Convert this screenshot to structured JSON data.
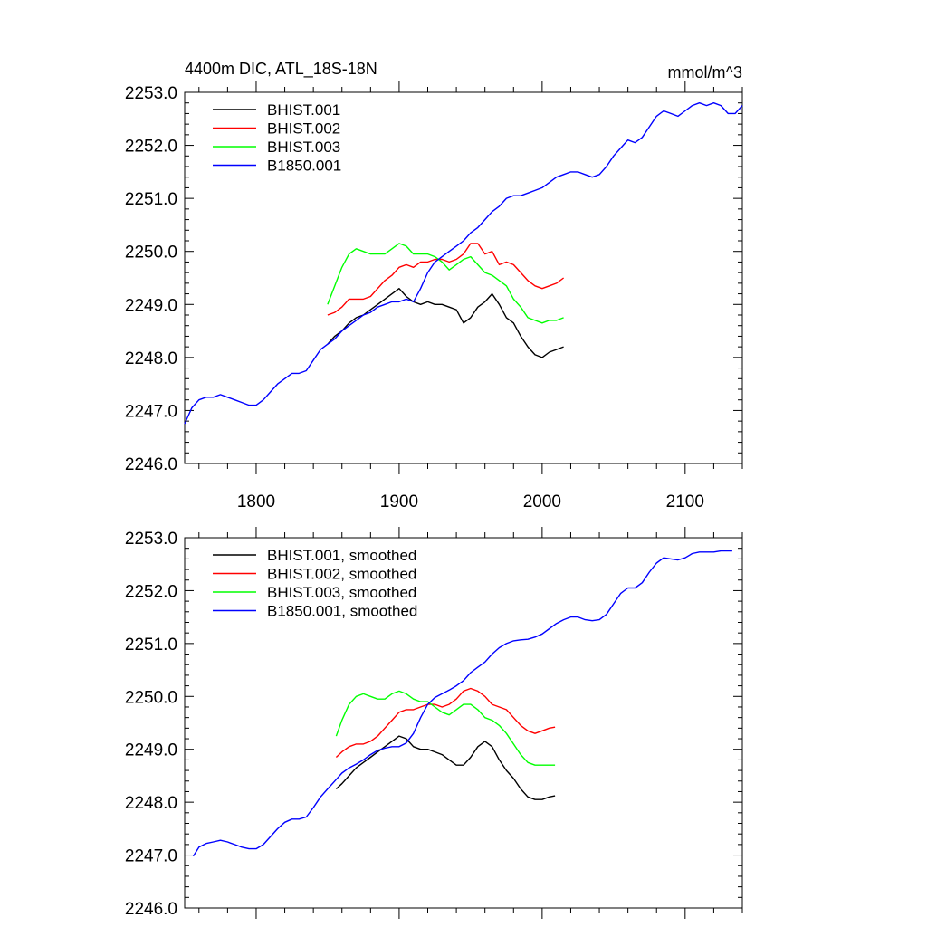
{
  "chart_data": [
    {
      "type": "line",
      "title": "4400m DIC, ATL_18S-18N",
      "units": "mmol/m^3",
      "xlim": [
        1750,
        2140
      ],
      "ylim": [
        2246.0,
        2253.0
      ],
      "x_ticks": [
        1800,
        1900,
        2000,
        2100
      ],
      "x_tick_labels": [
        "1800",
        "1900",
        "2000",
        "2100"
      ],
      "y_ticks": [
        2246.0,
        2247.0,
        2248.0,
        2249.0,
        2250.0,
        2251.0,
        2252.0,
        2253.0
      ],
      "y_tick_labels": [
        "2246.0",
        "2247.0",
        "2248.0",
        "2249.0",
        "2250.0",
        "2251.0",
        "2252.0",
        "2253.0"
      ],
      "legend_position": "top-left",
      "series": [
        {
          "name": "BHIST.001",
          "color": "#000000",
          "x": [
            1850,
            1855,
            1860,
            1865,
            1870,
            1875,
            1880,
            1885,
            1890,
            1895,
            1900,
            1905,
            1910,
            1915,
            1920,
            1925,
            1930,
            1935,
            1940,
            1945,
            1950,
            1955,
            1960,
            1965,
            1970,
            1975,
            1980,
            1985,
            1990,
            1995,
            2000,
            2005,
            2010,
            2015
          ],
          "y": [
            2248.25,
            2248.4,
            2248.5,
            2248.65,
            2248.75,
            2248.8,
            2248.9,
            2249.0,
            2249.1,
            2249.2,
            2249.3,
            2249.15,
            2249.05,
            2249.0,
            2249.05,
            2249.0,
            2249.0,
            2248.95,
            2248.9,
            2248.65,
            2248.75,
            2248.95,
            2249.05,
            2249.2,
            2249.0,
            2248.75,
            2248.65,
            2248.4,
            2248.2,
            2248.05,
            2248.0,
            2248.1,
            2248.15,
            2248.2
          ]
        },
        {
          "name": "BHIST.002",
          "color": "#ff0000",
          "x": [
            1850,
            1855,
            1860,
            1865,
            1870,
            1875,
            1880,
            1885,
            1890,
            1895,
            1900,
            1905,
            1910,
            1915,
            1920,
            1925,
            1930,
            1935,
            1940,
            1945,
            1950,
            1955,
            1960,
            1965,
            1970,
            1975,
            1980,
            1985,
            1990,
            1995,
            2000,
            2005,
            2010,
            2015
          ],
          "y": [
            2248.8,
            2248.85,
            2248.95,
            2249.1,
            2249.1,
            2249.1,
            2249.15,
            2249.3,
            2249.45,
            2249.55,
            2249.7,
            2249.75,
            2249.7,
            2249.8,
            2249.8,
            2249.85,
            2249.85,
            2249.8,
            2249.85,
            2249.95,
            2250.15,
            2250.15,
            2249.95,
            2250.0,
            2249.75,
            2249.8,
            2249.75,
            2249.6,
            2249.45,
            2249.35,
            2249.3,
            2249.35,
            2249.4,
            2249.5
          ]
        },
        {
          "name": "BHIST.003",
          "color": "#00ff00",
          "x": [
            1850,
            1855,
            1860,
            1865,
            1870,
            1875,
            1880,
            1885,
            1890,
            1895,
            1900,
            1905,
            1910,
            1915,
            1920,
            1925,
            1930,
            1935,
            1940,
            1945,
            1950,
            1955,
            1960,
            1965,
            1970,
            1975,
            1980,
            1985,
            1990,
            1995,
            2000,
            2005,
            2010,
            2015
          ],
          "y": [
            2249.0,
            2249.35,
            2249.7,
            2249.95,
            2250.05,
            2250.0,
            2249.95,
            2249.95,
            2249.95,
            2250.05,
            2250.15,
            2250.1,
            2249.95,
            2249.95,
            2249.95,
            2249.9,
            2249.8,
            2249.65,
            2249.75,
            2249.85,
            2249.9,
            2249.75,
            2249.6,
            2249.55,
            2249.45,
            2249.35,
            2249.1,
            2248.95,
            2248.75,
            2248.7,
            2248.65,
            2248.7,
            2248.7,
            2248.75
          ]
        },
        {
          "name": "B1850.001",
          "color": "#0000ff",
          "x": [
            1750,
            1755,
            1760,
            1765,
            1770,
            1775,
            1780,
            1785,
            1790,
            1795,
            1800,
            1805,
            1810,
            1815,
            1820,
            1825,
            1830,
            1835,
            1840,
            1845,
            1850,
            1855,
            1860,
            1865,
            1870,
            1875,
            1880,
            1885,
            1890,
            1895,
            1900,
            1905,
            1910,
            1915,
            1920,
            1925,
            1930,
            1935,
            1940,
            1945,
            1950,
            1955,
            1960,
            1965,
            1970,
            1975,
            1980,
            1985,
            1990,
            1995,
            2000,
            2005,
            2010,
            2015,
            2020,
            2025,
            2030,
            2035,
            2040,
            2045,
            2050,
            2055,
            2060,
            2065,
            2070,
            2075,
            2080,
            2085,
            2090,
            2095,
            2100,
            2105,
            2110,
            2115,
            2120,
            2125,
            2130,
            2135,
            2140
          ],
          "y": [
            2246.75,
            2247.05,
            2247.2,
            2247.25,
            2247.25,
            2247.3,
            2247.25,
            2247.2,
            2247.15,
            2247.1,
            2247.1,
            2247.2,
            2247.35,
            2247.5,
            2247.6,
            2247.7,
            2247.7,
            2247.75,
            2247.95,
            2248.15,
            2248.25,
            2248.35,
            2248.5,
            2248.6,
            2248.7,
            2248.8,
            2248.85,
            2248.95,
            2249.0,
            2249.05,
            2249.05,
            2249.1,
            2249.05,
            2249.3,
            2249.6,
            2249.8,
            2249.9,
            2250.0,
            2250.1,
            2250.2,
            2250.35,
            2250.45,
            2250.6,
            2250.75,
            2250.85,
            2251.0,
            2251.05,
            2251.05,
            2251.1,
            2251.15,
            2251.2,
            2251.3,
            2251.4,
            2251.45,
            2251.5,
            2251.5,
            2251.45,
            2251.4,
            2251.45,
            2251.6,
            2251.8,
            2251.95,
            2252.1,
            2252.05,
            2252.15,
            2252.35,
            2252.55,
            2252.65,
            2252.6,
            2252.55,
            2252.65,
            2252.75,
            2252.8,
            2252.75,
            2252.8,
            2252.75,
            2252.6,
            2252.6,
            2252.75
          ]
        }
      ]
    },
    {
      "type": "line",
      "xlim": [
        1750,
        2140
      ],
      "ylim": [
        2246.0,
        2253.0
      ],
      "x_ticks": [
        1800,
        1900,
        2000,
        2100
      ],
      "y_ticks": [
        2246.0,
        2247.0,
        2248.0,
        2249.0,
        2250.0,
        2251.0,
        2252.0,
        2253.0
      ],
      "y_tick_labels": [
        "2246.0",
        "2247.0",
        "2248.0",
        "2249.0",
        "2250.0",
        "2251.0",
        "2252.0",
        "2253.0"
      ],
      "legend_position": "top-left",
      "series": [
        {
          "name": "BHIST.001, smoothed",
          "color": "#000000",
          "x": [
            1856,
            1860,
            1865,
            1870,
            1875,
            1880,
            1885,
            1890,
            1895,
            1900,
            1905,
            1910,
            1915,
            1920,
            1925,
            1930,
            1935,
            1940,
            1945,
            1950,
            1955,
            1960,
            1965,
            1970,
            1975,
            1980,
            1985,
            1990,
            1995,
            2000,
            2005,
            2009
          ],
          "y": [
            2248.25,
            2248.35,
            2248.5,
            2248.65,
            2248.75,
            2248.85,
            2248.95,
            2249.05,
            2249.15,
            2249.25,
            2249.2,
            2249.05,
            2249.0,
            2249.0,
            2248.95,
            2248.9,
            2248.8,
            2248.7,
            2248.7,
            2248.85,
            2249.05,
            2249.15,
            2249.05,
            2248.8,
            2248.6,
            2248.45,
            2248.25,
            2248.1,
            2248.05,
            2248.05,
            2248.1,
            2248.12
          ]
        },
        {
          "name": "BHIST.002, smoothed",
          "color": "#ff0000",
          "x": [
            1856,
            1860,
            1865,
            1870,
            1875,
            1880,
            1885,
            1890,
            1895,
            1900,
            1905,
            1910,
            1915,
            1920,
            1925,
            1930,
            1935,
            1940,
            1945,
            1950,
            1955,
            1960,
            1965,
            1970,
            1975,
            1980,
            1985,
            1990,
            1995,
            2000,
            2005,
            2009
          ],
          "y": [
            2248.85,
            2248.95,
            2249.05,
            2249.1,
            2249.1,
            2249.15,
            2249.25,
            2249.4,
            2249.55,
            2249.7,
            2249.75,
            2249.75,
            2249.8,
            2249.85,
            2249.85,
            2249.8,
            2249.85,
            2249.95,
            2250.1,
            2250.15,
            2250.1,
            2250.0,
            2249.85,
            2249.8,
            2249.75,
            2249.6,
            2249.45,
            2249.35,
            2249.3,
            2249.35,
            2249.4,
            2249.42
          ]
        },
        {
          "name": "BHIST.003, smoothed",
          "color": "#00ff00",
          "x": [
            1856,
            1860,
            1865,
            1870,
            1875,
            1880,
            1885,
            1890,
            1895,
            1900,
            1905,
            1910,
            1915,
            1920,
            1925,
            1930,
            1935,
            1940,
            1945,
            1950,
            1955,
            1960,
            1965,
            1970,
            1975,
            1980,
            1985,
            1990,
            1995,
            2000,
            2005,
            2009
          ],
          "y": [
            2249.25,
            2249.55,
            2249.85,
            2250.0,
            2250.05,
            2250.0,
            2249.95,
            2249.95,
            2250.05,
            2250.1,
            2250.05,
            2249.95,
            2249.9,
            2249.9,
            2249.8,
            2249.7,
            2249.65,
            2249.75,
            2249.85,
            2249.85,
            2249.75,
            2249.6,
            2249.55,
            2249.45,
            2249.3,
            2249.1,
            2248.9,
            2248.75,
            2248.7,
            2248.7,
            2248.7,
            2248.7
          ]
        },
        {
          "name": "B1850.001, smoothed",
          "color": "#0000ff",
          "x": [
            1756,
            1760,
            1765,
            1770,
            1775,
            1780,
            1785,
            1790,
            1795,
            1800,
            1805,
            1810,
            1815,
            1820,
            1825,
            1830,
            1835,
            1840,
            1845,
            1850,
            1855,
            1860,
            1865,
            1870,
            1875,
            1880,
            1885,
            1890,
            1895,
            1900,
            1905,
            1910,
            1915,
            1920,
            1925,
            1930,
            1935,
            1940,
            1945,
            1950,
            1955,
            1960,
            1965,
            1970,
            1975,
            1980,
            1985,
            1990,
            1995,
            2000,
            2005,
            2010,
            2015,
            2020,
            2025,
            2030,
            2035,
            2040,
            2045,
            2050,
            2055,
            2060,
            2065,
            2070,
            2075,
            2080,
            2085,
            2090,
            2095,
            2100,
            2105,
            2110,
            2115,
            2120,
            2125,
            2130,
            2133
          ],
          "y": [
            2246.98,
            2247.15,
            2247.22,
            2247.25,
            2247.28,
            2247.25,
            2247.2,
            2247.15,
            2247.12,
            2247.12,
            2247.2,
            2247.35,
            2247.5,
            2247.62,
            2247.68,
            2247.68,
            2247.72,
            2247.9,
            2248.1,
            2248.25,
            2248.4,
            2248.55,
            2248.65,
            2248.72,
            2248.8,
            2248.9,
            2248.98,
            2249.02,
            2249.05,
            2249.05,
            2249.12,
            2249.3,
            2249.6,
            2249.85,
            2249.98,
            2250.05,
            2250.12,
            2250.2,
            2250.3,
            2250.45,
            2250.55,
            2250.65,
            2250.8,
            2250.92,
            2251.0,
            2251.05,
            2251.07,
            2251.08,
            2251.12,
            2251.18,
            2251.28,
            2251.38,
            2251.45,
            2251.5,
            2251.5,
            2251.45,
            2251.43,
            2251.45,
            2251.55,
            2251.75,
            2251.95,
            2252.05,
            2252.05,
            2252.15,
            2252.35,
            2252.52,
            2252.62,
            2252.6,
            2252.58,
            2252.62,
            2252.7,
            2252.73,
            2252.73,
            2252.73,
            2252.75,
            2252.75,
            2252.75
          ]
        }
      ]
    }
  ]
}
